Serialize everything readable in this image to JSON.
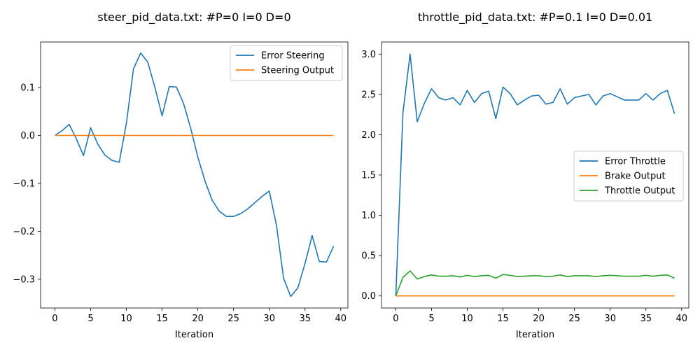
{
  "chart_data": [
    {
      "type": "line",
      "title": "steer_pid_data.txt: #P=0 I=0 D=0",
      "xlabel": "Iteration",
      "ylabel": "",
      "xlim": [
        -2,
        41
      ],
      "ylim": [
        -0.36,
        0.195
      ],
      "xticks": [
        0,
        5,
        10,
        15,
        20,
        25,
        30,
        35,
        40
      ],
      "yticks": [
        -0.3,
        -0.2,
        -0.1,
        0.0,
        0.1
      ],
      "ytick_labels": [
        "−0.3",
        "−0.2",
        "−0.1",
        "0.0",
        "0.1"
      ],
      "legend_position": "top-right",
      "grid": false,
      "x": [
        0,
        1,
        2,
        3,
        4,
        5,
        6,
        7,
        8,
        9,
        10,
        11,
        12,
        13,
        14,
        15,
        16,
        17,
        18,
        19,
        20,
        21,
        22,
        23,
        24,
        25,
        26,
        27,
        28,
        29,
        30,
        31,
        32,
        33,
        34,
        35,
        36,
        37,
        38,
        39
      ],
      "series": [
        {
          "name": "Error Steering",
          "color": "#1f77b4",
          "values": [
            0.0,
            0.01,
            0.023,
            -0.007,
            -0.042,
            0.016,
            -0.018,
            -0.041,
            -0.052,
            -0.056,
            0.025,
            0.139,
            0.172,
            0.153,
            0.1,
            0.041,
            0.102,
            0.101,
            0.067,
            0.015,
            -0.045,
            -0.095,
            -0.135,
            -0.158,
            -0.169,
            -0.169,
            -0.163,
            -0.153,
            -0.14,
            -0.127,
            -0.116,
            -0.187,
            -0.298,
            -0.336,
            -0.318,
            -0.267,
            -0.209,
            -0.263,
            -0.264,
            -0.231
          ]
        },
        {
          "name": "Steering Output",
          "color": "#ff7f0e",
          "values": [
            0,
            0,
            0,
            0,
            0,
            0,
            0,
            0,
            0,
            0,
            0,
            0,
            0,
            0,
            0,
            0,
            0,
            0,
            0,
            0,
            0,
            0,
            0,
            0,
            0,
            0,
            0,
            0,
            0,
            0,
            0,
            0,
            0,
            0,
            0,
            0,
            0,
            0,
            0,
            0
          ]
        }
      ]
    },
    {
      "type": "line",
      "title": "throttle_pid_data.txt: #P=0.1 I=0 D=0.01",
      "xlabel": "Iteration",
      "ylabel": "",
      "xlim": [
        -2,
        41
      ],
      "ylim": [
        -0.15,
        3.15
      ],
      "xticks": [
        0,
        5,
        10,
        15,
        20,
        25,
        30,
        35,
        40
      ],
      "yticks": [
        0.0,
        0.5,
        1.0,
        1.5,
        2.0,
        2.5,
        3.0
      ],
      "ytick_labels": [
        "0.0",
        "0.5",
        "1.0",
        "1.5",
        "2.0",
        "2.5",
        "3.0"
      ],
      "legend_position": "center-right",
      "grid": false,
      "x": [
        0,
        1,
        2,
        3,
        4,
        5,
        6,
        7,
        8,
        9,
        10,
        11,
        12,
        13,
        14,
        15,
        16,
        17,
        18,
        19,
        20,
        21,
        22,
        23,
        24,
        25,
        26,
        27,
        28,
        29,
        30,
        31,
        32,
        33,
        34,
        35,
        36,
        37,
        38,
        39
      ],
      "series": [
        {
          "name": "Error Throttle",
          "color": "#1f77b4",
          "values": [
            0.0,
            2.27,
            3.0,
            2.16,
            2.39,
            2.57,
            2.46,
            2.43,
            2.46,
            2.37,
            2.55,
            2.4,
            2.51,
            2.54,
            2.2,
            2.59,
            2.51,
            2.37,
            2.43,
            2.48,
            2.49,
            2.38,
            2.4,
            2.57,
            2.38,
            2.46,
            2.48,
            2.5,
            2.37,
            2.48,
            2.51,
            2.47,
            2.43,
            2.43,
            2.43,
            2.51,
            2.43,
            2.51,
            2.55,
            2.26
          ]
        },
        {
          "name": "Brake Output",
          "color": "#ff7f0e",
          "values": [
            0,
            0,
            0,
            0,
            0,
            0,
            0,
            0,
            0,
            0,
            0,
            0,
            0,
            0,
            0,
            0,
            0,
            0,
            0,
            0,
            0,
            0,
            0,
            0,
            0,
            0,
            0,
            0,
            0,
            0,
            0,
            0,
            0,
            0,
            0,
            0,
            0,
            0,
            0,
            0
          ]
        },
        {
          "name": "Throttle Output",
          "color": "#2ca02c",
          "values": [
            0.0,
            0.23,
            0.31,
            0.21,
            0.24,
            0.26,
            0.245,
            0.245,
            0.25,
            0.235,
            0.255,
            0.24,
            0.25,
            0.255,
            0.22,
            0.265,
            0.255,
            0.24,
            0.245,
            0.25,
            0.25,
            0.24,
            0.245,
            0.26,
            0.24,
            0.25,
            0.25,
            0.25,
            0.24,
            0.25,
            0.255,
            0.25,
            0.245,
            0.245,
            0.245,
            0.255,
            0.245,
            0.255,
            0.26,
            0.22
          ]
        }
      ]
    }
  ]
}
